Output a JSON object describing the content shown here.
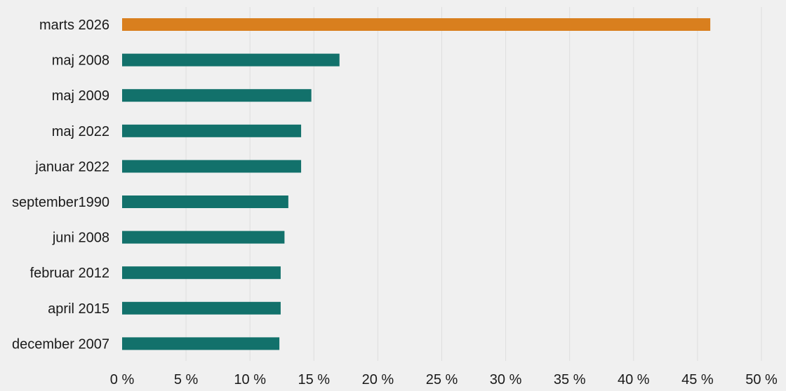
{
  "chart_data": {
    "type": "bar",
    "orientation": "horizontal",
    "categories": [
      "marts 2026",
      "maj 2008",
      "maj 2009",
      "maj 2022",
      "januar 2022",
      "september1990",
      "juni 2008",
      "februar 2012",
      "april 2015",
      "december 2007"
    ],
    "values": [
      46.0,
      17.0,
      14.8,
      14.0,
      14.0,
      13.0,
      12.7,
      12.4,
      12.4,
      12.3
    ],
    "unit": "%",
    "xlim": [
      0,
      50
    ],
    "ticks": [
      {
        "value": 0,
        "label": "0 %"
      },
      {
        "value": 5,
        "label": "5 %"
      },
      {
        "value": 10,
        "label": "10 %"
      },
      {
        "value": 15,
        "label": "15 %"
      },
      {
        "value": 20,
        "label": "20 %"
      },
      {
        "value": 25,
        "label": "25 %"
      },
      {
        "value": 30,
        "label": "30 %"
      },
      {
        "value": 35,
        "label": "35 %"
      },
      {
        "value": 40,
        "label": "40 %"
      },
      {
        "value": 45,
        "label": "45 %"
      },
      {
        "value": 50,
        "label": "50 %"
      }
    ],
    "grid": true,
    "colors": {
      "highlight": "#d97f1e",
      "default": "#12716b"
    },
    "highlight_index": 0
  }
}
